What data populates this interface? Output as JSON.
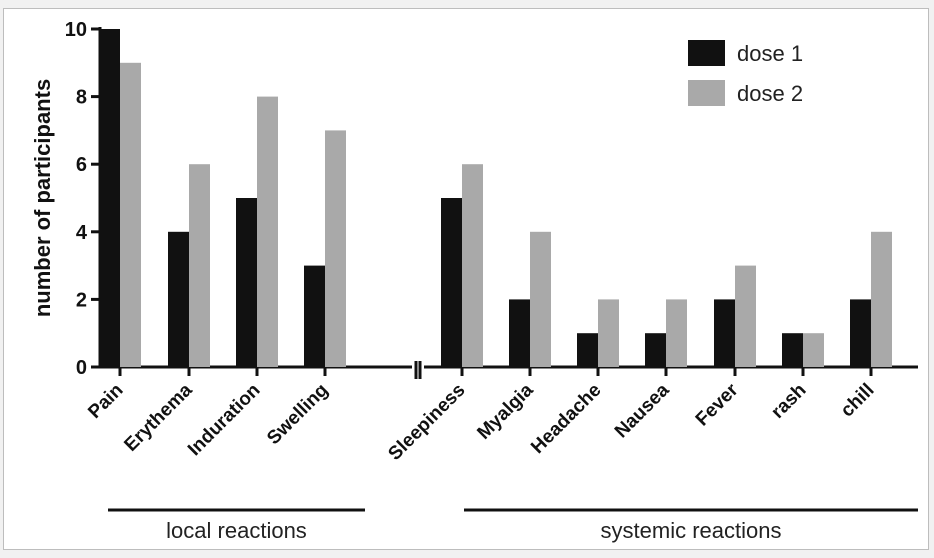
{
  "chart_data": {
    "type": "bar",
    "ylabel": "number of participants",
    "ylim": [
      0,
      10
    ],
    "yticks": [
      "0",
      "2",
      "4",
      "6",
      "8",
      "10"
    ],
    "categories": [
      "Pain",
      "Erythema",
      "Induration",
      "Swelling",
      "Sleepiness",
      "Myalgia",
      "Headache",
      "Nausea",
      "Fever",
      "rash",
      "chill"
    ],
    "series": [
      {
        "name": "dose 1",
        "color": "#111111",
        "values": [
          10,
          4,
          5,
          3,
          5,
          2,
          1,
          1,
          2,
          1,
          2
        ]
      },
      {
        "name": "dose 2",
        "color": "#a9a9a9",
        "values": [
          9,
          6,
          8,
          7,
          6,
          4,
          2,
          2,
          3,
          1,
          4
        ]
      }
    ],
    "groups": [
      {
        "label": "local reactions",
        "categories": [
          "Pain",
          "Erythema",
          "Induration",
          "Swelling"
        ]
      },
      {
        "label": "systemic reactions",
        "categories": [
          "Sleepiness",
          "Myalgia",
          "Headache",
          "Nausea",
          "Fever",
          "rash",
          "chill"
        ]
      }
    ],
    "legend_position": "top-right",
    "grid": false
  }
}
